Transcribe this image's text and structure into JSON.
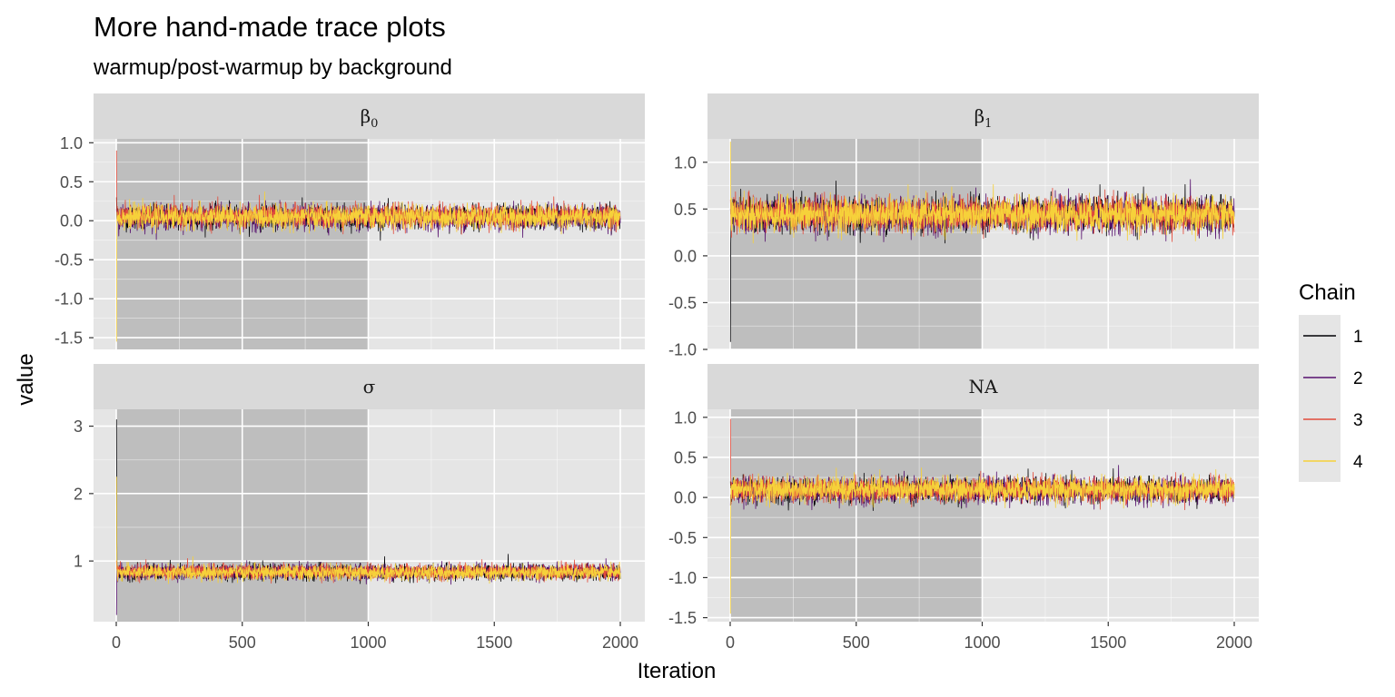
{
  "chart_data": {
    "type": "line",
    "title": "More hand-made trace plots",
    "subtitle": "warmup/post-warmup by background",
    "xlabel": "Iteration",
    "ylabel": "value",
    "x_range": [
      0,
      2000
    ],
    "warmup_end": 1000,
    "x_ticks": [
      0,
      500,
      1000,
      1500,
      2000
    ],
    "grid": true,
    "legend": {
      "title": "Chain",
      "placement": "right",
      "entries": [
        {
          "label": "1",
          "color": "#000004"
        },
        {
          "label": "2",
          "color": "#56106e"
        },
        {
          "label": "3",
          "color": "#e24b3b"
        },
        {
          "label": "4",
          "color": "#f6d13a"
        }
      ]
    },
    "panels": [
      {
        "strip": "β",
        "strip_sub": "0",
        "ylim": [
          -1.65,
          1.05
        ],
        "y_ticks": [
          "1.0",
          "0.5",
          "0.0",
          "-0.5",
          "-1.0",
          "-1.5"
        ],
        "y_tick_values": [
          1.0,
          0.5,
          0.0,
          -0.5,
          -1.0,
          -1.5
        ],
        "start_values": [
          0.3,
          0.15,
          0.9,
          -1.55
        ],
        "chain_means": [
          0.05,
          0.04,
          0.06,
          0.05
        ],
        "chain_sd": 0.075,
        "outliers": []
      },
      {
        "strip": "β",
        "strip_sub": "1",
        "ylim": [
          -1.0,
          1.25
        ],
        "y_ticks": [
          "1.0",
          "0.5",
          "0.0",
          "-0.5",
          "-1.0"
        ],
        "y_tick_values": [
          1.0,
          0.5,
          0.0,
          -0.5,
          -1.0
        ],
        "start_values": [
          -0.92,
          0.5,
          0.6,
          1.22
        ],
        "chain_means": [
          0.44,
          0.43,
          0.45,
          0.44
        ],
        "chain_sd": 0.09,
        "outliers": [
          {
            "chain": 0,
            "x": 420,
            "y": 0.8
          }
        ]
      },
      {
        "strip": "σ",
        "strip_sub": "",
        "ylim": [
          0.1,
          3.25
        ],
        "y_ticks": [
          "3",
          "2",
          "1"
        ],
        "y_tick_values": [
          3,
          2,
          1
        ],
        "start_values": [
          3.1,
          0.2,
          1.0,
          2.25
        ],
        "chain_means": [
          0.83,
          0.84,
          0.84,
          0.83
        ],
        "chain_sd": 0.055,
        "outliers": [
          {
            "chain": 0,
            "x": 1555,
            "y": 1.1
          }
        ]
      },
      {
        "strip": "NA",
        "strip_sub": "",
        "ylim": [
          -1.55,
          1.1
        ],
        "y_ticks": [
          "1.0",
          "0.5",
          "0.0",
          "-0.5",
          "-1.0",
          "-1.5"
        ],
        "y_tick_values": [
          1.0,
          0.5,
          0.0,
          -0.5,
          -1.0,
          -1.5
        ],
        "start_values": [
          0.2,
          -0.1,
          0.98,
          -1.45
        ],
        "chain_means": [
          0.09,
          0.08,
          0.1,
          0.1
        ],
        "chain_sd": 0.075,
        "outliers": []
      }
    ]
  }
}
